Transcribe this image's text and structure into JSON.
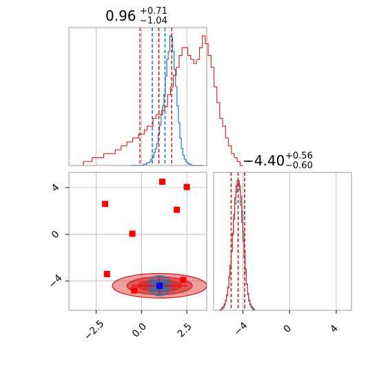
{
  "chart_data": [
    {
      "type": "histogram",
      "panel": "top-left",
      "title": {
        "median": "0.96",
        "plus": "+0.71",
        "minus": "−1.04"
      },
      "xlim": [
        -4,
        3.6
      ],
      "grid": true,
      "ticks_shown": false,
      "series": [
        {
          "color": "#1f77b4",
          "bin_start": -0.6,
          "bin_width": 0.08,
          "counts": [
            0,
            0,
            0,
            0,
            0,
            0,
            0,
            0,
            0,
            1,
            1,
            2,
            2,
            3,
            5,
            6,
            10,
            13,
            17,
            24,
            31,
            39,
            46,
            55,
            69,
            82,
            88,
            100,
            99,
            88,
            74,
            61,
            46,
            33,
            21,
            13,
            8,
            5,
            3,
            2,
            1,
            1,
            0,
            0,
            0,
            0,
            0,
            0,
            0,
            0
          ],
          "quantiles": [
            0.6,
            0.96,
            1.3
          ]
        },
        {
          "color": "#d62728",
          "bin_start": -3.2,
          "bin_width": 0.16,
          "counts": [
            1,
            1,
            1,
            2,
            2,
            2,
            2,
            3,
            3,
            3,
            3,
            4,
            4,
            5,
            5,
            6,
            6,
            7,
            7,
            8,
            8,
            9,
            10,
            10,
            12,
            13,
            13,
            14,
            15,
            18,
            20,
            23,
            25,
            28,
            30,
            30,
            28,
            27,
            26,
            27,
            30,
            33,
            31,
            28,
            25,
            20,
            16,
            12,
            10,
            7,
            5,
            3,
            2,
            1,
            0
          ],
          "quantiles": [
            -0.08,
            0.96,
            1.67
          ]
        }
      ]
    },
    {
      "type": "histogram",
      "panel": "bottom-right",
      "title": {
        "median": "−4.40",
        "plus": "+0.56",
        "minus": "−0.60"
      },
      "xlim": [
        -6.5,
        5.3
      ],
      "xticks": [
        -4,
        0,
        4
      ],
      "xtick_labels": [
        "−4",
        "0",
        "4"
      ],
      "grid": true,
      "series": [
        {
          "color": "#1f77b4",
          "bin_start": -6.0,
          "bin_width": 0.1,
          "counts": [
            0,
            1,
            2,
            3,
            5,
            8,
            12,
            18,
            26,
            35,
            45,
            58,
            70,
            82,
            91,
            97,
            100,
            96,
            88,
            76,
            61,
            46,
            32,
            20,
            12,
            7,
            4,
            2,
            1,
            0
          ],
          "quantiles": [
            -5.0,
            -4.4,
            -3.84
          ]
        },
        {
          "color": "#d62728",
          "bin_start": -6.0,
          "bin_width": 0.1,
          "counts": [
            0,
            1,
            1,
            2,
            4,
            7,
            11,
            17,
            25,
            34,
            46,
            59,
            73,
            86,
            95,
            99,
            97,
            92,
            80,
            67,
            53,
            40,
            29,
            20,
            13,
            8,
            5,
            3,
            2,
            1
          ],
          "quantiles": [
            -5.0,
            -4.4,
            -3.84
          ]
        }
      ]
    },
    {
      "type": "scatter",
      "panel": "bottom-left",
      "xlim": [
        -4,
        3.6
      ],
      "ylim": [
        -6.5,
        5.3
      ],
      "xticks": [
        -2.5,
        0.0,
        2.5
      ],
      "xtick_labels": [
        "−2.5",
        "0.0",
        "2.5"
      ],
      "yticks": [
        4,
        0,
        -4
      ],
      "ytick_labels": [
        "4",
        "0",
        "−4"
      ],
      "grid": true,
      "contours": [
        {
          "color": "#d62728",
          "center": [
            1.0,
            -4.4
          ],
          "levels": [
            {
              "rx": 2.6,
              "ry": 1.05,
              "fill_opacity": 0.45
            },
            {
              "rx": 1.8,
              "ry": 0.75,
              "fill_opacity": 0.6
            },
            {
              "rx": 1.2,
              "ry": 0.5,
              "fill_opacity": 0.75
            }
          ]
        },
        {
          "color": "#1f77b4",
          "center": [
            1.0,
            -4.4
          ],
          "levels": [
            {
              "rx": 0.65,
              "ry": 0.85,
              "fill_opacity": 0.35
            },
            {
              "rx": 0.42,
              "ry": 0.55,
              "fill_opacity": 0.55
            },
            {
              "rx": 0.22,
              "ry": 0.3,
              "fill_opacity": 0.75
            }
          ]
        }
      ],
      "red_points": [
        {
          "x": -2.0,
          "y": 2.6
        },
        {
          "x": -0.5,
          "y": 0.05
        },
        {
          "x": 1.15,
          "y": 4.5
        },
        {
          "x": 2.5,
          "y": 4.05
        },
        {
          "x": 1.95,
          "y": 2.1
        },
        {
          "x": -1.9,
          "y": -3.4
        },
        {
          "x": -0.4,
          "y": -4.8
        },
        {
          "x": 2.3,
          "y": -3.9
        }
      ],
      "blue_point": {
        "x": 1.0,
        "y": -4.4
      },
      "crosshair": {
        "x": 1.0,
        "y": -4.4
      }
    }
  ],
  "colors": {
    "blue": "#1f77b4",
    "red": "#d62728",
    "red_marker": "#ff0000",
    "blue_marker": "#0000ff"
  }
}
